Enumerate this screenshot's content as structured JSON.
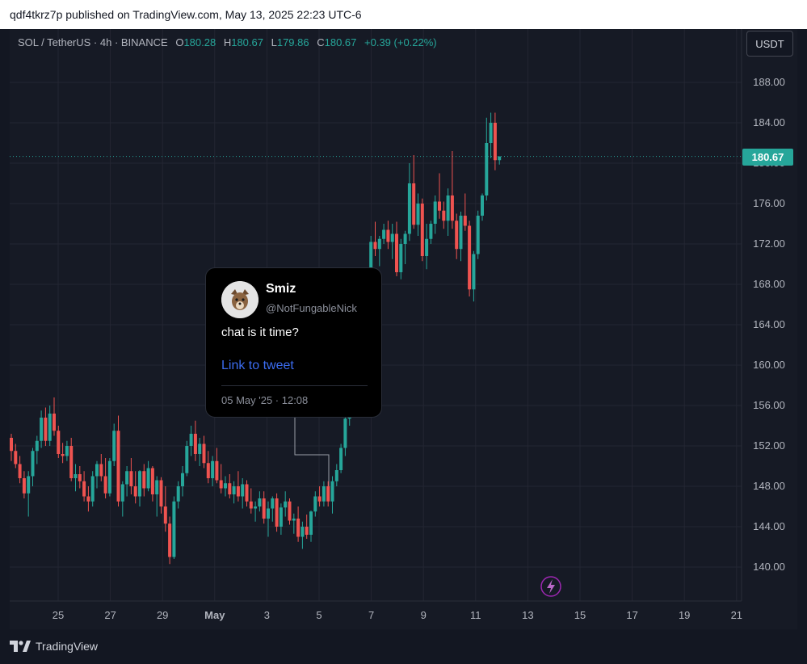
{
  "publish_bar": {
    "text": "qdf4tkrz7p published on TradingView.com, May 13, 2025 22:23 UTC-6"
  },
  "legend": {
    "symbol": "SOL / TetherUS · 4h · BINANCE",
    "o_label": "O",
    "o_value": "180.28",
    "h_label": "H",
    "h_value": "180.67",
    "l_label": "L",
    "l_value": "179.86",
    "c_label": "C",
    "c_value": "180.67",
    "change": "+0.39 (+0.22%)"
  },
  "currency_button": "USDT",
  "last_price_badge": "180.67",
  "tweet": {
    "name": "Smiz",
    "handle": "@NotFungableNick",
    "text": "chat is it time?",
    "link": "Link to tweet",
    "date": "05 May '25 · 12:08"
  },
  "footer": {
    "brand": "TradingView"
  },
  "colors": {
    "up": "#26a69a",
    "down": "#ef5350",
    "background": "#161a25",
    "grid": "#232632"
  },
  "icons": {
    "lightning": "lightning-icon",
    "brand": "tradingview-logo-icon"
  },
  "chart_data": {
    "type": "candlestick",
    "y_ticks": [
      "188.00",
      "184.00",
      "180.00",
      "176.00",
      "172.00",
      "168.00",
      "164.00",
      "160.00",
      "156.00",
      "152.00",
      "148.00",
      "144.00",
      "140.00"
    ],
    "x_ticks": [
      "25",
      "27",
      "29",
      "May",
      "3",
      "5",
      "7",
      "9",
      "11",
      "13",
      "15",
      "17",
      "19",
      "21"
    ],
    "last_price": 180.67,
    "ylim": [
      136.5,
      191.2
    ],
    "candles": [
      [
        152.8,
        153.2,
        150.5,
        151.5
      ],
      [
        151.5,
        152.2,
        149.8,
        150.2
      ],
      [
        150.2,
        151.0,
        148.3,
        148.8
      ],
      [
        148.8,
        149.5,
        146.8,
        147.3
      ],
      [
        147.3,
        149.5,
        145.0,
        149.0
      ],
      [
        149.0,
        151.8,
        148.0,
        151.5
      ],
      [
        151.5,
        153.0,
        150.2,
        152.5
      ],
      [
        152.5,
        155.5,
        151.8,
        154.8
      ],
      [
        154.8,
        155.8,
        152.0,
        152.5
      ],
      [
        152.5,
        156.0,
        152.0,
        155.2
      ],
      [
        155.2,
        156.8,
        153.0,
        153.5
      ],
      [
        153.5,
        154.0,
        150.8,
        151.2
      ],
      [
        151.2,
        152.3,
        150.3,
        151.0
      ],
      [
        151.0,
        152.5,
        150.5,
        152.0
      ],
      [
        152.0,
        152.8,
        148.5,
        148.8
      ],
      [
        148.8,
        150.2,
        147.5,
        149.2
      ],
      [
        149.2,
        150.0,
        147.8,
        148.5
      ],
      [
        148.5,
        149.5,
        146.5,
        147.0
      ],
      [
        147.0,
        148.0,
        145.5,
        146.5
      ],
      [
        146.5,
        149.5,
        146.0,
        149.0
      ],
      [
        149.0,
        150.5,
        147.8,
        150.2
      ],
      [
        150.2,
        151.2,
        148.5,
        149.0
      ],
      [
        149.0,
        150.8,
        146.8,
        147.3
      ],
      [
        147.3,
        150.8,
        147.0,
        150.5
      ],
      [
        150.5,
        154.2,
        150.0,
        153.5
      ],
      [
        153.5,
        155.0,
        146.0,
        146.5
      ],
      [
        146.5,
        148.5,
        145.0,
        148.2
      ],
      [
        148.2,
        150.0,
        147.0,
        149.5
      ],
      [
        149.5,
        150.8,
        147.2,
        148.0
      ],
      [
        148.0,
        149.5,
        146.3,
        147.0
      ],
      [
        147.0,
        149.6,
        146.0,
        149.5
      ],
      [
        149.5,
        150.2,
        147.0,
        147.8
      ],
      [
        147.8,
        150.5,
        147.5,
        149.8
      ],
      [
        149.8,
        150.0,
        146.5,
        147.2
      ],
      [
        147.2,
        149.0,
        145.0,
        148.6
      ],
      [
        148.6,
        148.9,
        145.3,
        146.0
      ],
      [
        146.0,
        148.0,
        143.5,
        144.3
      ],
      [
        144.3,
        145.0,
        140.3,
        141.0
      ],
      [
        141.0,
        147.0,
        140.8,
        146.5
      ],
      [
        146.5,
        148.5,
        145.8,
        148.0
      ],
      [
        148.0,
        150.0,
        147.0,
        149.3
      ],
      [
        149.3,
        152.5,
        149.0,
        152.0
      ],
      [
        152.0,
        154.0,
        151.0,
        153.2
      ],
      [
        153.2,
        154.5,
        150.5,
        151.2
      ],
      [
        151.2,
        152.8,
        150.0,
        152.2
      ],
      [
        152.2,
        153.0,
        149.8,
        150.3
      ],
      [
        150.3,
        151.5,
        148.3,
        148.8
      ],
      [
        148.8,
        151.0,
        148.0,
        150.5
      ],
      [
        150.5,
        151.8,
        148.3,
        148.6
      ],
      [
        148.6,
        150.2,
        147.3,
        147.8
      ],
      [
        147.8,
        149.0,
        147.0,
        148.3
      ],
      [
        148.3,
        149.2,
        146.8,
        147.2
      ],
      [
        147.2,
        148.5,
        146.3,
        148.0
      ],
      [
        148.0,
        149.5,
        146.5,
        147.0
      ],
      [
        147.0,
        148.8,
        145.8,
        148.2
      ],
      [
        148.2,
        148.6,
        146.0,
        146.5
      ],
      [
        146.5,
        147.8,
        145.3,
        145.8
      ],
      [
        145.8,
        146.5,
        144.5,
        146.0
      ],
      [
        146.0,
        147.5,
        145.5,
        146.8
      ],
      [
        146.8,
        147.5,
        144.3,
        144.8
      ],
      [
        144.8,
        146.5,
        143.0,
        145.8
      ],
      [
        145.8,
        147.0,
        144.5,
        146.8
      ],
      [
        146.8,
        147.3,
        143.5,
        144.0
      ],
      [
        144.0,
        146.3,
        143.2,
        145.9
      ],
      [
        145.9,
        147.5,
        145.0,
        146.5
      ],
      [
        146.5,
        146.8,
        144.2,
        144.6
      ],
      [
        144.6,
        145.3,
        143.3,
        144.8
      ],
      [
        144.8,
        146.0,
        142.5,
        143.0
      ],
      [
        143.0,
        144.5,
        141.8,
        144.0
      ],
      [
        144.0,
        145.2,
        142.8,
        143.2
      ],
      [
        143.2,
        145.6,
        142.5,
        145.5
      ],
      [
        145.5,
        147.5,
        145.0,
        147.0
      ],
      [
        147.0,
        148.0,
        146.0,
        146.5
      ],
      [
        146.5,
        148.5,
        146.0,
        148.0
      ],
      [
        148.0,
        148.5,
        146.0,
        146.5
      ],
      [
        146.5,
        149.0,
        145.3,
        148.5
      ],
      [
        148.5,
        150.2,
        148.0,
        149.6
      ],
      [
        149.6,
        152.2,
        149.3,
        151.8
      ],
      [
        151.8,
        155.8,
        151.0,
        154.7
      ],
      [
        154.7,
        160.3,
        154.0,
        159.8
      ],
      [
        159.8,
        162.5,
        159.0,
        162.0
      ],
      [
        162.0,
        164.8,
        160.3,
        164.2
      ],
      [
        164.2,
        164.8,
        160.8,
        161.2
      ],
      [
        161.2,
        165.8,
        161.0,
        165.5
      ],
      [
        165.5,
        172.8,
        165.0,
        172.2
      ],
      [
        172.2,
        174.2,
        170.8,
        171.5
      ],
      [
        171.5,
        172.8,
        169.8,
        172.5
      ],
      [
        172.5,
        174.0,
        172.0,
        173.4
      ],
      [
        173.4,
        174.3,
        171.5,
        172.2
      ],
      [
        172.2,
        174.0,
        170.5,
        173.0
      ],
      [
        173.0,
        174.2,
        168.8,
        169.2
      ],
      [
        169.2,
        172.5,
        168.5,
        172.0
      ],
      [
        172.0,
        173.3,
        170.0,
        173.0
      ],
      [
        173.0,
        180.0,
        172.3,
        178.0
      ],
      [
        178.0,
        180.8,
        173.5,
        173.9
      ],
      [
        173.9,
        177.0,
        172.8,
        176.0
      ],
      [
        176.0,
        176.5,
        170.3,
        170.8
      ],
      [
        170.8,
        174.0,
        169.5,
        172.5
      ],
      [
        172.5,
        174.3,
        172.0,
        174.0
      ],
      [
        174.0,
        176.8,
        173.0,
        176.2
      ],
      [
        176.2,
        179.0,
        174.5,
        175.3
      ],
      [
        175.3,
        176.2,
        173.5,
        174.3
      ],
      [
        174.3,
        177.5,
        172.8,
        176.8
      ],
      [
        176.8,
        181.2,
        173.5,
        174.3
      ],
      [
        174.3,
        175.0,
        170.5,
        171.5
      ],
      [
        171.5,
        175.2,
        170.3,
        174.8
      ],
      [
        174.8,
        177.0,
        173.3,
        173.8
      ],
      [
        173.8,
        174.3,
        166.8,
        167.5
      ],
      [
        167.5,
        171.3,
        166.3,
        171.0
      ],
      [
        171.0,
        175.3,
        170.5,
        174.8
      ],
      [
        174.8,
        177.0,
        174.3,
        176.8
      ],
      [
        176.8,
        184.5,
        176.3,
        182.0
      ],
      [
        182.0,
        185.0,
        180.5,
        184.0
      ],
      [
        184.0,
        185.0,
        179.3,
        180.3
      ],
      [
        180.3,
        180.67,
        179.86,
        180.67
      ]
    ]
  }
}
